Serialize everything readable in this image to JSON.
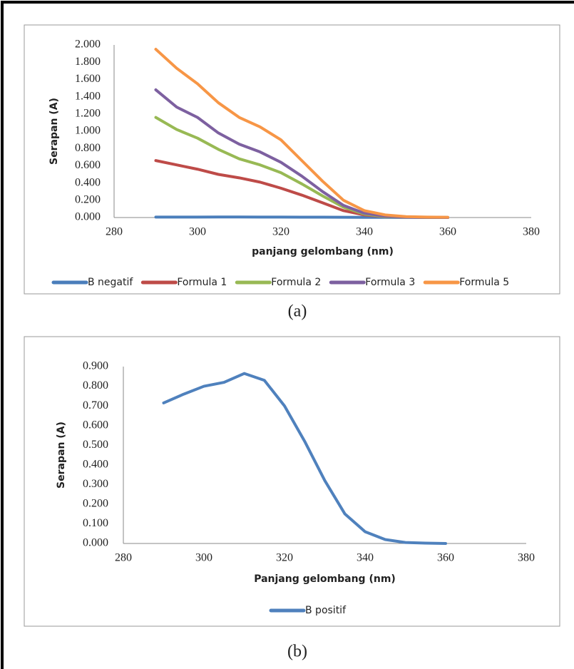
{
  "chart_data": [
    {
      "type": "line",
      "x_label": "panjang gelombang (nm)",
      "y_label": "Serapan (A)",
      "legend": "bottom",
      "x": [
        290,
        295,
        300,
        305,
        310,
        315,
        320,
        325,
        330,
        335,
        340,
        345,
        350,
        355,
        360
      ],
      "xlim": [
        280,
        380
      ],
      "xticks": [
        280,
        300,
        320,
        340,
        360,
        380
      ],
      "ylim": [
        0,
        2
      ],
      "yticks": [
        {
          "value": 0,
          "label": "0.000"
        },
        {
          "value": 0.2,
          "label": "0.200"
        },
        {
          "value": 0.4,
          "label": "0.400"
        },
        {
          "value": 0.6,
          "label": "0.600"
        },
        {
          "value": 0.8,
          "label": "0.800"
        },
        {
          "value": 1,
          "label": "1.000"
        },
        {
          "value": 1.2,
          "label": "1.200"
        },
        {
          "value": 1.4,
          "label": "1.400"
        },
        {
          "value": 1.6,
          "label": "1.600"
        },
        {
          "value": 1.8,
          "label": "1.800"
        },
        {
          "value": 2,
          "label": "2.000"
        }
      ],
      "series": [
        {
          "name": "B negatif",
          "color": "#4a7ebb",
          "values": [
            0.005,
            0.005,
            0.005,
            0.006,
            0.006,
            0.005,
            0.005,
            0.004,
            0.004,
            0.003,
            0.002,
            0.002,
            0.001,
            0.001,
            0.001
          ]
        },
        {
          "name": "Formula 1",
          "color": "#be4b48",
          "values": [
            0.66,
            0.61,
            0.56,
            0.5,
            0.46,
            0.41,
            0.34,
            0.26,
            0.17,
            0.08,
            0.03,
            0.01,
            0.005,
            0.002,
            0
          ]
        },
        {
          "name": "Formula 2",
          "color": "#98b954",
          "values": [
            1.16,
            1.02,
            0.92,
            0.79,
            0.68,
            0.61,
            0.52,
            0.39,
            0.25,
            0.12,
            0.04,
            0.01,
            0.005,
            0.002,
            0
          ]
        },
        {
          "name": "Formula 3",
          "color": "#7d60a0",
          "values": [
            1.48,
            1.28,
            1.16,
            0.98,
            0.85,
            0.76,
            0.64,
            0.48,
            0.3,
            0.14,
            0.05,
            0.015,
            0.005,
            0.002,
            0
          ]
        },
        {
          "name": "Formula 5",
          "color": "#f79646",
          "values": [
            1.95,
            1.73,
            1.55,
            1.33,
            1.16,
            1.05,
            0.9,
            0.66,
            0.42,
            0.2,
            0.08,
            0.03,
            0.01,
            0.005,
            0.003
          ]
        }
      ]
    },
    {
      "type": "line",
      "x_label": "Panjang gelombang (nm)",
      "y_label": "Serapan (A)",
      "legend": "bottom",
      "x": [
        290,
        295,
        300,
        305,
        310,
        315,
        320,
        325,
        330,
        335,
        340,
        345,
        350,
        355,
        360
      ],
      "xlim": [
        280,
        380
      ],
      "xticks": [
        280,
        300,
        320,
        340,
        360,
        380
      ],
      "ylim": [
        0,
        0.9
      ],
      "yticks": [
        {
          "value": 0,
          "label": "0.000"
        },
        {
          "value": 0.1,
          "label": "0.100"
        },
        {
          "value": 0.2,
          "label": "0.200"
        },
        {
          "value": 0.3,
          "label": "0.300"
        },
        {
          "value": 0.4,
          "label": "0.400"
        },
        {
          "value": 0.5,
          "label": "0.500"
        },
        {
          "value": 0.6,
          "label": "0.600"
        },
        {
          "value": 0.7,
          "label": "0.700"
        },
        {
          "value": 0.8,
          "label": "0.800"
        },
        {
          "value": 0.9,
          "label": "0.900"
        }
      ],
      "series": [
        {
          "name": "B positif",
          "color": "#4f81bd",
          "values": [
            0.715,
            0.76,
            0.8,
            0.82,
            0.865,
            0.83,
            0.7,
            0.52,
            0.32,
            0.15,
            0.06,
            0.02,
            0.005,
            0.002,
            0
          ]
        }
      ]
    }
  ],
  "captions": [
    "(a)",
    "(b)"
  ]
}
